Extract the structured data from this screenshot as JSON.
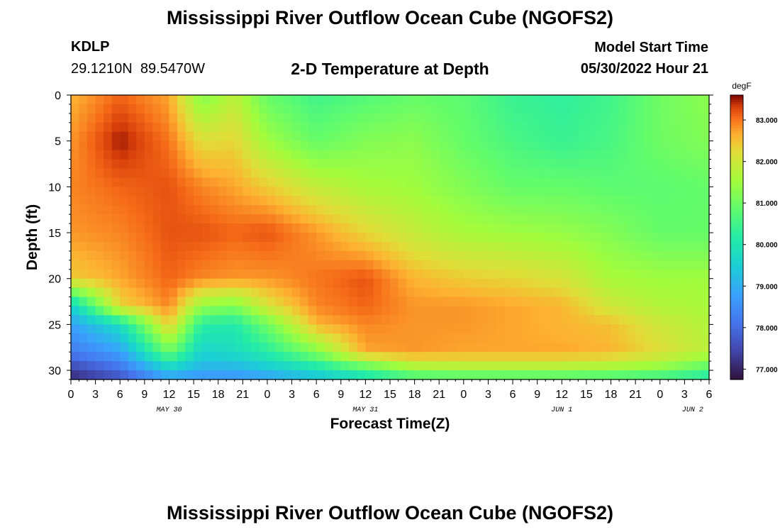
{
  "chart_data": {
    "type": "heatmap",
    "title": "Mississippi River Outflow Ocean Cube (NGOFS2)",
    "station": "KDLP",
    "coords_lat": "29.1210N",
    "coords_lon": "89.5470W",
    "subtitle": "2-D Temperature at Depth",
    "model_start_label": "Model Start Time",
    "model_start_value": "05/30/2022 Hour 21",
    "xlabel": "Forecast Time(Z)",
    "ylabel": "Depth (ft)",
    "units": "degF",
    "x_hours_range": [
      0,
      78
    ],
    "y_range": [
      0,
      31
    ],
    "y_ticks": [
      0,
      5,
      10,
      15,
      20,
      25,
      30
    ],
    "x_ticks": [
      {
        "h": 0,
        "label": "0"
      },
      {
        "h": 3,
        "label": "3"
      },
      {
        "h": 6,
        "label": "6"
      },
      {
        "h": 9,
        "label": "9"
      },
      {
        "h": 12,
        "label": "12"
      },
      {
        "h": 15,
        "label": "15"
      },
      {
        "h": 18,
        "label": "18"
      },
      {
        "h": 21,
        "label": "21"
      },
      {
        "h": 24,
        "label": "0"
      },
      {
        "h": 27,
        "label": "3"
      },
      {
        "h": 30,
        "label": "6"
      },
      {
        "h": 33,
        "label": "9"
      },
      {
        "h": 36,
        "label": "12"
      },
      {
        "h": 39,
        "label": "15"
      },
      {
        "h": 42,
        "label": "18"
      },
      {
        "h": 45,
        "label": "21"
      },
      {
        "h": 48,
        "label": "0"
      },
      {
        "h": 51,
        "label": "3"
      },
      {
        "h": 54,
        "label": "6"
      },
      {
        "h": 57,
        "label": "9"
      },
      {
        "h": 60,
        "label": "12"
      },
      {
        "h": 63,
        "label": "15"
      },
      {
        "h": 66,
        "label": "18"
      },
      {
        "h": 69,
        "label": "21"
      },
      {
        "h": 72,
        "label": "0"
      },
      {
        "h": 75,
        "label": "3"
      },
      {
        "h": 78,
        "label": "6"
      }
    ],
    "date_labels": [
      {
        "h": 12,
        "label": "MAY 30"
      },
      {
        "h": 36,
        "label": "MAY 31"
      },
      {
        "h": 60,
        "label": "JUN 1"
      },
      {
        "h": 76,
        "label": "JUN 2"
      }
    ],
    "colorbar_range": [
      76.75,
      83.6
    ],
    "colorbar_ticks": [
      "77.000",
      "78.000",
      "79.000",
      "80.000",
      "81.000",
      "82.000",
      "83.000"
    ],
    "colorbar_tick_values": [
      77,
      78,
      79,
      80,
      81,
      82,
      83
    ],
    "data_hours": [
      0,
      6,
      12,
      16,
      20,
      24,
      30,
      36,
      42,
      48,
      54,
      60,
      66,
      72,
      78
    ],
    "data_depths": [
      0,
      5,
      10,
      15,
      20,
      23,
      25,
      28,
      30,
      31
    ],
    "values": [
      [
        82.6,
        83.1,
        82.7,
        81.2,
        81.8,
        80.9,
        80.5,
        80.7,
        80.9,
        80.8,
        80.4,
        80.3,
        80.5,
        81.0,
        81.3
      ],
      [
        82.8,
        83.5,
        83.0,
        82.2,
        82.3,
        81.5,
        80.9,
        81.2,
        81.3,
        80.9,
        80.6,
        80.4,
        80.6,
        81.0,
        81.2
      ],
      [
        82.9,
        83.1,
        83.2,
        82.9,
        82.7,
        82.4,
        81.9,
        81.6,
        81.5,
        81.2,
        80.9,
        80.9,
        80.8,
        80.8,
        80.9
      ],
      [
        82.8,
        82.9,
        83.2,
        83.2,
        83.1,
        83.2,
        82.8,
        82.3,
        81.9,
        81.6,
        81.5,
        81.4,
        81.2,
        80.9,
        80.9
      ],
      [
        82.4,
        82.7,
        83.1,
        82.9,
        82.8,
        82.8,
        83.0,
        83.2,
        82.6,
        82.4,
        82.3,
        82.1,
        81.6,
        81.5,
        81.5
      ],
      [
        79.5,
        82.3,
        82.9,
        81.4,
        81.2,
        82.1,
        82.9,
        83.1,
        82.8,
        82.8,
        82.7,
        82.6,
        82.0,
        81.7,
        81.6
      ],
      [
        78.8,
        79.8,
        82.4,
        80.2,
        80.1,
        81.0,
        82.6,
        82.9,
        82.8,
        82.8,
        82.7,
        82.6,
        82.5,
        82.0,
        81.7
      ],
      [
        78.2,
        78.8,
        81.0,
        79.6,
        79.8,
        80.2,
        81.2,
        82.7,
        82.8,
        82.7,
        82.7,
        82.7,
        82.6,
        82.2,
        81.8
      ],
      [
        77.4,
        78.0,
        79.4,
        79.0,
        79.0,
        79.3,
        79.8,
        80.5,
        81.4,
        81.5,
        81.5,
        81.5,
        81.4,
        81.2,
        80.6
      ],
      [
        77.0,
        77.6,
        78.7,
        78.5,
        78.5,
        78.7,
        79.2,
        79.8,
        80.3,
        80.4,
        80.4,
        80.4,
        80.3,
        80.2,
        80.0
      ]
    ]
  }
}
